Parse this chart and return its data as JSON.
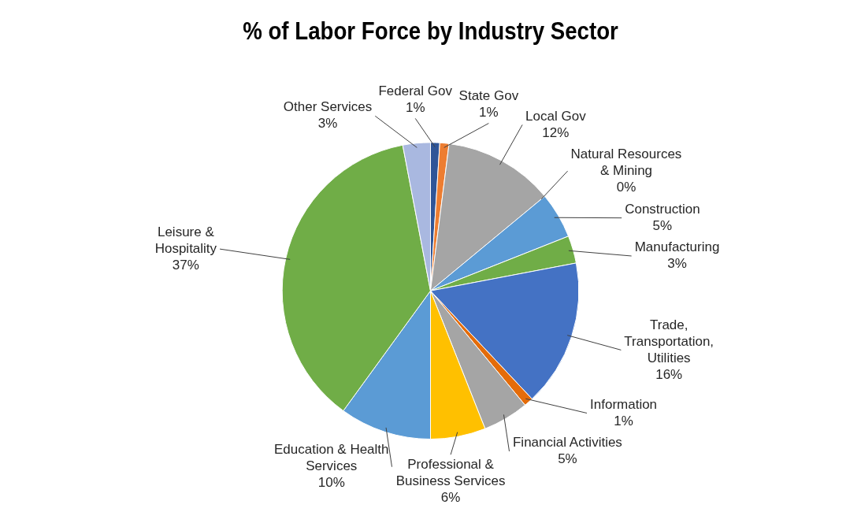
{
  "chart_data": {
    "type": "pie",
    "title": "% of Labor Force by Industry Sector",
    "categories": [
      "Federal Gov",
      "State Gov",
      "Local Gov",
      "Natural Resources & Mining",
      "Construction",
      "Manufacturing",
      "Trade, Transportation, Utilities",
      "Information",
      "Financial Activities",
      "Professional & Business Services",
      "Education & Health Services",
      "Leisure & Hospitality",
      "Other Services"
    ],
    "values": [
      1,
      1,
      12,
      0,
      5,
      3,
      16,
      1,
      5,
      6,
      10,
      37,
      3
    ],
    "value_labels": [
      "1%",
      "1%",
      "12%",
      "0%",
      "5%",
      "3%",
      "16%",
      "1%",
      "5%",
      "6%",
      "10%",
      "37%",
      "3%"
    ],
    "colors": [
      "#2f5597",
      "#ed7d31",
      "#a5a5a5",
      "#ffc000",
      "#5b9bd5",
      "#70ad47",
      "#4472c4",
      "#e46c0a",
      "#a5a5a5",
      "#ffc000",
      "#5b9bd5",
      "#70ad47",
      "#a9b8e0"
    ],
    "legend": false
  }
}
